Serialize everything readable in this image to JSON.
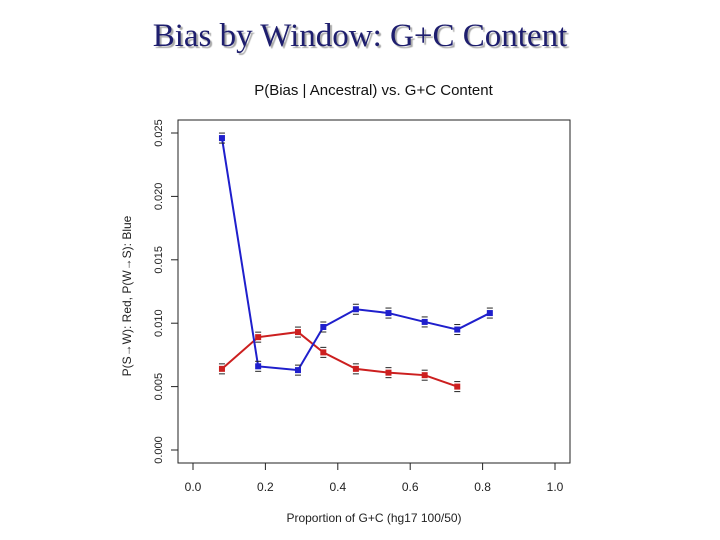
{
  "slide": {
    "title": "Bias by Window: G+C Content"
  },
  "chart_data": {
    "type": "line",
    "title": "P(Bias | Ancestral) vs. G+C Content",
    "xlabel": "Proportion of G+C (hg17 100/50)",
    "ylabel": "P(S→W): Red, P(W→S): Blue",
    "xlim": [
      0.0,
      1.0
    ],
    "ylim": [
      0.0,
      0.025
    ],
    "x_ticks": [
      0.0,
      0.2,
      0.4,
      0.6,
      0.8,
      1.0
    ],
    "x_tick_labels": [
      "0.0",
      "0.2",
      "0.4",
      "0.6",
      "0.8",
      "1.0"
    ],
    "y_ticks": [
      0.0,
      0.005,
      0.01,
      0.015,
      0.02,
      0.025
    ],
    "y_tick_labels": [
      "0.000",
      "0.005",
      "0.010",
      "0.015",
      "0.020",
      "0.025"
    ],
    "grid": false,
    "series": [
      {
        "color": "#cc1f1f",
        "x": [
          0.08,
          0.18,
          0.29,
          0.36,
          0.45,
          0.54,
          0.64,
          0.73
        ],
        "y": [
          0.0064,
          0.0089,
          0.0093,
          0.0077,
          0.0064,
          0.0061,
          0.0059,
          0.005
        ]
      },
      {
        "color": "#1f1fcc",
        "x": [
          0.08,
          0.18,
          0.29,
          0.36,
          0.45,
          0.54,
          0.64,
          0.73,
          0.82
        ],
        "y": [
          0.0246,
          0.0066,
          0.0063,
          0.0097,
          0.0111,
          0.0108,
          0.0101,
          0.0095,
          0.0108
        ]
      }
    ]
  }
}
